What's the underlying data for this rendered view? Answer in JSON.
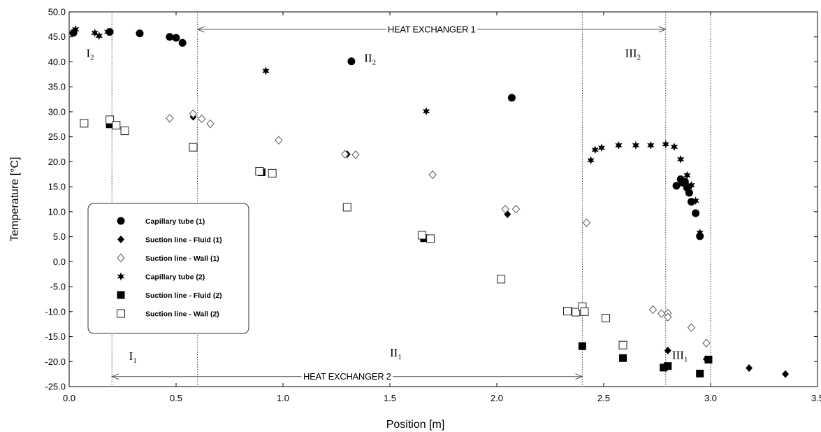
{
  "chart_data": {
    "type": "scatter",
    "xlabel": "Position [m]",
    "ylabel": "Temperature [°C]",
    "xlim": [
      0.0,
      3.5
    ],
    "ylim": [
      -25.0,
      50.0
    ],
    "x_ticks": [
      "0.0",
      "0.5",
      "1.0",
      "1.5",
      "2.0",
      "2.5",
      "3.0",
      "3.5"
    ],
    "y_ticks": [
      "-25.0",
      "-20.0",
      "-15.0",
      "-10.0",
      "-5.0",
      "0.0",
      "5.0",
      "10.0",
      "15.0",
      "20.0",
      "25.0",
      "30.0",
      "35.0",
      "40.0",
      "45.0",
      "50.0"
    ],
    "grid": false,
    "legend_position": "middle-left",
    "vertical_lines_x": [
      0.2,
      0.6,
      2.4,
      2.79,
      3.0
    ],
    "annotations": [
      {
        "id": "hx1",
        "text": "HEAT EXCHANGER 1",
        "x_from": 0.6,
        "x_to": 2.79,
        "y": 46.5
      },
      {
        "id": "hx2",
        "text": "HEAT EXCHANGER 2",
        "x_from": 0.2,
        "x_to": 2.4,
        "y": -23.0
      }
    ],
    "regions": [
      {
        "id": "I2",
        "main": "I",
        "sub": "2",
        "x": 0.08,
        "y": 41.0
      },
      {
        "id": "II2",
        "main": "II",
        "sub": "2",
        "x": 1.38,
        "y": 40.0
      },
      {
        "id": "III2",
        "main": "III",
        "sub": "2",
        "x": 2.6,
        "y": 41.0
      },
      {
        "id": "I1",
        "main": "I",
        "sub": "1",
        "x": 0.28,
        "y": -19.7
      },
      {
        "id": "II1",
        "main": "II",
        "sub": "1",
        "x": 1.5,
        "y": -19.0
      },
      {
        "id": "III1",
        "main": "III",
        "sub": "1",
        "x": 2.82,
        "y": -19.5
      }
    ],
    "series": [
      {
        "name": "Capillary tube (1)",
        "marker": "circle-filled",
        "points": [
          [
            0.02,
            45.8
          ],
          [
            0.19,
            46.0
          ],
          [
            0.33,
            45.7
          ],
          [
            0.47,
            45.0
          ],
          [
            0.5,
            44.8
          ],
          [
            0.53,
            43.8
          ],
          [
            1.32,
            40.1
          ],
          [
            2.07,
            32.8
          ],
          [
            2.84,
            15.2
          ],
          [
            2.86,
            16.5
          ],
          [
            2.87,
            15.8
          ],
          [
            2.88,
            16.0
          ],
          [
            2.89,
            14.8
          ],
          [
            2.9,
            13.8
          ],
          [
            2.91,
            12.0
          ],
          [
            2.93,
            9.7
          ],
          [
            2.95,
            5.1
          ]
        ]
      },
      {
        "name": "Suction line - Fluid (1)",
        "marker": "diamond-filled",
        "points": [
          [
            0.58,
            29.0
          ],
          [
            1.3,
            21.5
          ],
          [
            2.05,
            9.5
          ],
          [
            2.8,
            -17.8
          ],
          [
            2.98,
            -19.5
          ],
          [
            3.18,
            -21.3
          ],
          [
            3.35,
            -22.5
          ]
        ]
      },
      {
        "name": "Suction line - Wall (1)",
        "marker": "diamond-open",
        "points": [
          [
            0.47,
            28.7
          ],
          [
            0.58,
            29.6
          ],
          [
            0.62,
            28.6
          ],
          [
            0.66,
            27.6
          ],
          [
            0.98,
            24.3
          ],
          [
            1.29,
            21.5
          ],
          [
            1.34,
            21.4
          ],
          [
            1.7,
            17.4
          ],
          [
            2.04,
            10.5
          ],
          [
            2.09,
            10.5
          ],
          [
            2.42,
            7.8
          ],
          [
            2.73,
            -9.6
          ],
          [
            2.77,
            -10.4
          ],
          [
            2.8,
            -10.3
          ],
          [
            2.8,
            -11.1
          ],
          [
            2.91,
            -13.2
          ],
          [
            2.98,
            -16.3
          ]
        ]
      },
      {
        "name": "Capillary tube (2)",
        "marker": "star-filled",
        "points": [
          [
            0.03,
            46.5
          ],
          [
            0.12,
            45.8
          ],
          [
            0.14,
            45.2
          ],
          [
            0.18,
            46.0
          ],
          [
            0.92,
            38.2
          ],
          [
            1.67,
            30.1
          ],
          [
            2.44,
            20.3
          ],
          [
            2.46,
            22.4
          ],
          [
            2.49,
            22.8
          ],
          [
            2.57,
            23.3
          ],
          [
            2.65,
            23.3
          ],
          [
            2.72,
            23.3
          ],
          [
            2.79,
            23.5
          ],
          [
            2.83,
            23.0
          ],
          [
            2.86,
            20.5
          ],
          [
            2.89,
            17.3
          ],
          [
            2.91,
            15.3
          ],
          [
            2.93,
            12.2
          ],
          [
            2.95,
            5.8
          ]
        ]
      },
      {
        "name": "Suction line - Fluid (2)",
        "marker": "square-filled",
        "points": [
          [
            0.19,
            27.5
          ],
          [
            0.9,
            17.9
          ],
          [
            1.66,
            4.7
          ],
          [
            2.4,
            -16.9
          ],
          [
            2.59,
            -19.3
          ],
          [
            2.78,
            -21.2
          ],
          [
            2.8,
            -20.9
          ],
          [
            2.95,
            -22.4
          ],
          [
            2.99,
            -19.6
          ]
        ]
      },
      {
        "name": "Suction line - Wall (2)",
        "marker": "square-open",
        "points": [
          [
            0.07,
            27.7
          ],
          [
            0.19,
            28.4
          ],
          [
            0.22,
            27.3
          ],
          [
            0.26,
            26.2
          ],
          [
            0.58,
            22.9
          ],
          [
            0.89,
            18.1
          ],
          [
            0.95,
            17.7
          ],
          [
            1.3,
            10.9
          ],
          [
            1.65,
            5.3
          ],
          [
            1.69,
            4.6
          ],
          [
            2.02,
            -3.5
          ],
          [
            2.33,
            -9.9
          ],
          [
            2.37,
            -10.1
          ],
          [
            2.4,
            -9.0
          ],
          [
            2.41,
            -10.0
          ],
          [
            2.51,
            -11.3
          ],
          [
            2.59,
            -16.7
          ]
        ]
      }
    ]
  }
}
